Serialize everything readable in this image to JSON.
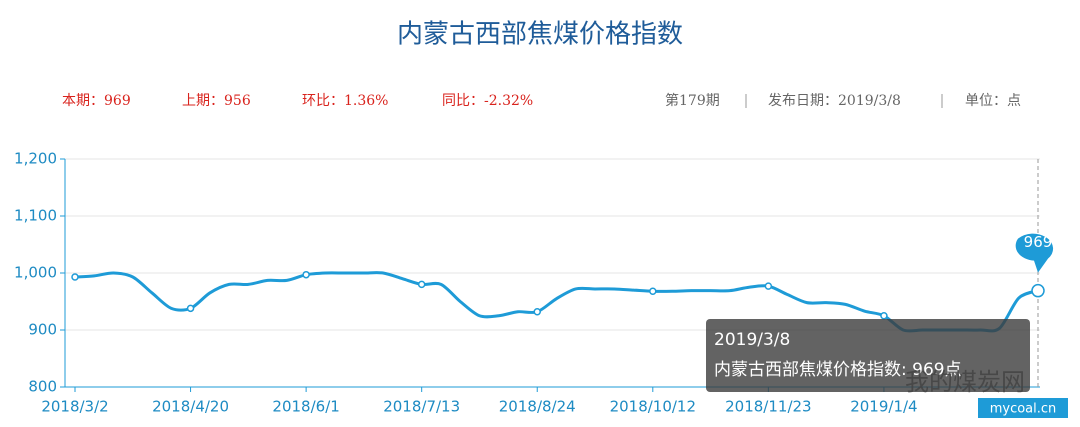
{
  "chart_data": {
    "type": "line",
    "title": "内蒙古西部焦煤价格指数",
    "stats": [
      "本期：969",
      "上期：956",
      "环比：1.36%",
      "同比：-2.32%"
    ],
    "info": [
      "第179期",
      "发布日期：2019/3/8",
      "单位：点"
    ],
    "categories": [
      "2018/3/2",
      null,
      null,
      null,
      null,
      null,
      "2018/4/20",
      null,
      null,
      null,
      null,
      null,
      "2018/6/1",
      null,
      null,
      null,
      null,
      null,
      "2018/7/13",
      null,
      null,
      null,
      null,
      null,
      "2018/8/24",
      null,
      null,
      null,
      null,
      null,
      "2018/10/12",
      null,
      null,
      null,
      null,
      null,
      "2018/11/23",
      null,
      null,
      null,
      null,
      null,
      "2019/1/4",
      null,
      null,
      null,
      null,
      null,
      null,
      null,
      null
    ],
    "series": [
      {
        "name": "内蒙古西部焦煤价格指数",
        "color": "#1e9bd7",
        "values": [
          993,
          995,
          1000,
          993,
          965,
          938,
          938,
          965,
          980,
          980,
          987,
          987,
          997,
          1000,
          1000,
          1000,
          1000,
          990,
          980,
          980,
          950,
          925,
          925,
          932,
          932,
          955,
          972,
          972,
          972,
          970,
          968,
          968,
          969,
          969,
          969,
          975,
          977,
          962,
          948,
          948,
          945,
          933,
          925,
          900,
          900,
          900,
          900,
          900,
          903,
          956,
          969
        ]
      }
    ],
    "ylim": [
      800,
      1200
    ],
    "yticks": [
      {
        "value": 800,
        "label": "800"
      },
      {
        "value": 900,
        "label": "900"
      },
      {
        "value": 1000,
        "label": "1,000"
      },
      {
        "value": 1100,
        "label": "1,100"
      },
      {
        "value": 1200,
        "label": "1,200"
      }
    ],
    "grid": true,
    "tooltip": {
      "date": "2019/3/8",
      "text": "内蒙古西部焦煤价格指数: 969点"
    },
    "watermark": [
      "我的煤炭网",
      "mycoal.cn"
    ]
  }
}
